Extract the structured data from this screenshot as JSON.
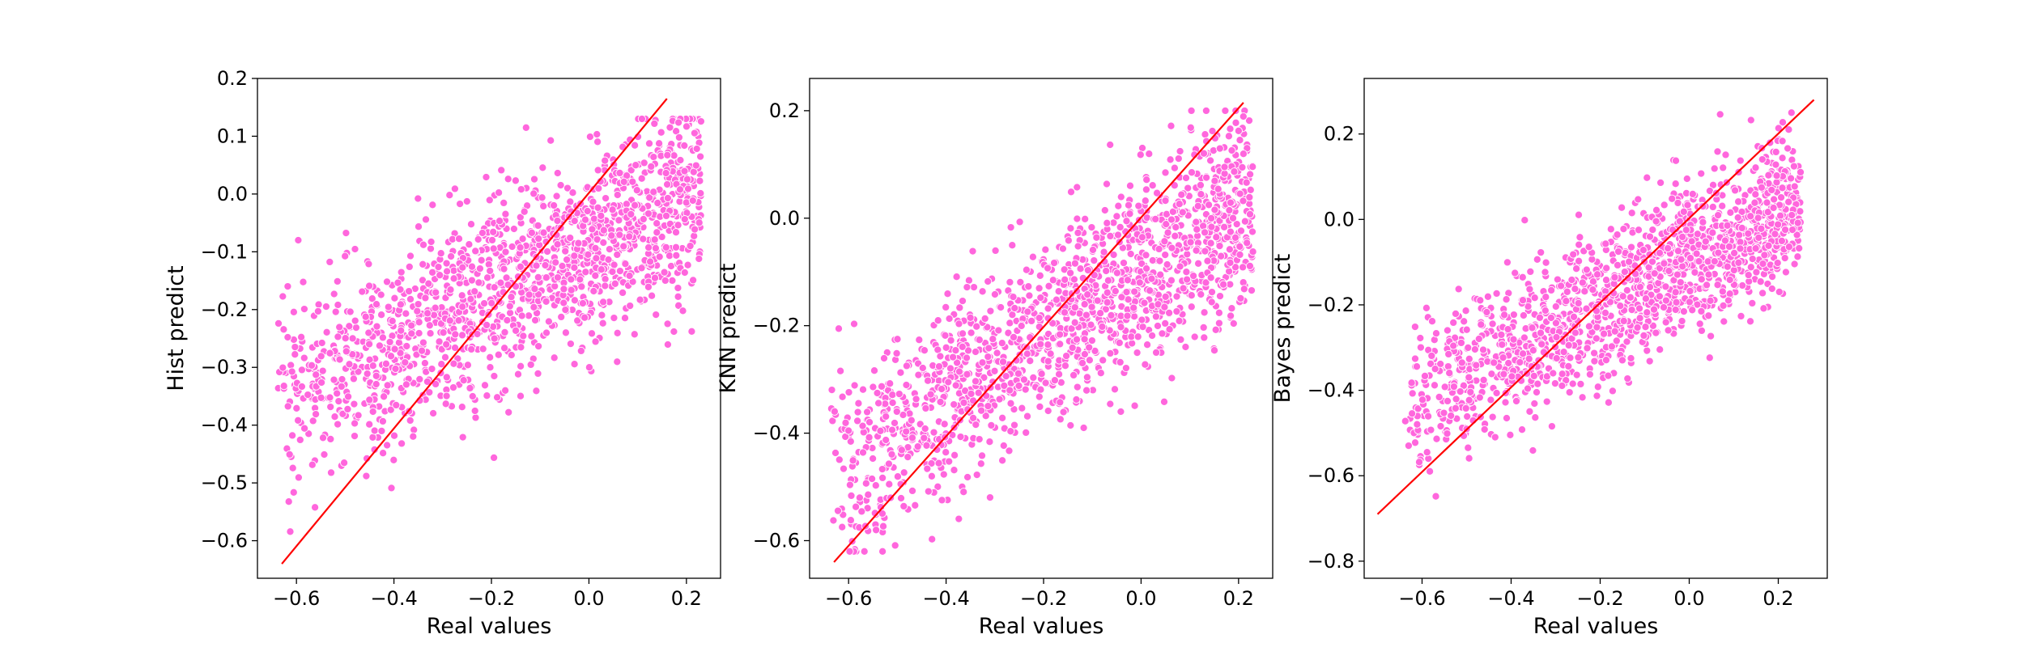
{
  "chart_data": [
    {
      "type": "scatter",
      "xlabel": "Real values",
      "ylabel": "Hist predict",
      "xlim": [
        -0.68,
        0.27
      ],
      "ylim": [
        -0.665,
        0.2
      ],
      "xticks": [
        -0.6,
        -0.4,
        -0.2,
        0.0,
        0.2
      ],
      "yticks": [
        -0.6,
        -0.5,
        -0.4,
        -0.3,
        -0.2,
        -0.1,
        0.0,
        0.1,
        0.2
      ],
      "xtick_labels": [
        "−0.6",
        "−0.4",
        "−0.2",
        "0.0",
        "0.2"
      ],
      "ytick_labels": [
        "−0.6",
        "−0.5",
        "−0.4",
        "−0.3",
        "−0.2",
        "−0.1",
        "0.0",
        "0.1",
        "0.2"
      ],
      "grid": false,
      "point_color": "#ff66dd",
      "line_color": "#ff0000",
      "fit_line": {
        "x": [
          -0.63,
          0.16
        ],
        "y": [
          -0.64,
          0.165
        ]
      },
      "cloud": {
        "x_range": [
          -0.64,
          0.23
        ],
        "slope": 0.42,
        "intercept": -0.09,
        "noise": 0.085,
        "count": 1500,
        "ymin": -0.62,
        "ymax": 0.13
      }
    },
    {
      "type": "scatter",
      "xlabel": "Real values",
      "ylabel": "KNN predict",
      "xlim": [
        -0.68,
        0.27
      ],
      "ylim": [
        -0.67,
        0.26
      ],
      "xticks": [
        -0.6,
        -0.4,
        -0.2,
        0.0,
        0.2
      ],
      "yticks": [
        -0.6,
        -0.4,
        -0.2,
        0.0,
        0.2
      ],
      "xtick_labels": [
        "−0.6",
        "−0.4",
        "−0.2",
        "0.0",
        "0.2"
      ],
      "ytick_labels": [
        "−0.6",
        "−0.4",
        "−0.2",
        "0.0",
        "0.2"
      ],
      "grid": false,
      "point_color": "#ff66dd",
      "line_color": "#ff0000",
      "fit_line": {
        "x": [
          -0.63,
          0.21
        ],
        "y": [
          -0.64,
          0.215
        ]
      },
      "cloud": {
        "x_range": [
          -0.64,
          0.23
        ],
        "slope": 0.58,
        "intercept": -0.1,
        "noise": 0.09,
        "count": 1500,
        "ymin": -0.62,
        "ymax": 0.2
      }
    },
    {
      "type": "scatter",
      "xlabel": "Real values",
      "ylabel": "Bayes predict",
      "xlim": [
        -0.73,
        0.31
      ],
      "ylim": [
        -0.84,
        0.33
      ],
      "xticks": [
        -0.6,
        -0.4,
        -0.2,
        0.0,
        0.2
      ],
      "yticks": [
        -0.8,
        -0.6,
        -0.4,
        -0.2,
        0.0,
        0.2
      ],
      "xtick_labels": [
        "−0.6",
        "−0.4",
        "−0.2",
        "0.0",
        "0.2"
      ],
      "ytick_labels": [
        "−0.8",
        "−0.6",
        "−0.4",
        "−0.2",
        "0.0",
        "0.2"
      ],
      "grid": false,
      "point_color": "#ff66dd",
      "line_color": "#ff0000",
      "fit_line": {
        "x": [
          -0.7,
          0.28
        ],
        "y": [
          -0.69,
          0.28
        ]
      },
      "cloud": {
        "x_range": [
          -0.64,
          0.25
        ],
        "slope": 0.55,
        "intercept": -0.09,
        "noise": 0.085,
        "count": 1500,
        "ymin": -0.82,
        "ymax": 0.25
      }
    }
  ]
}
